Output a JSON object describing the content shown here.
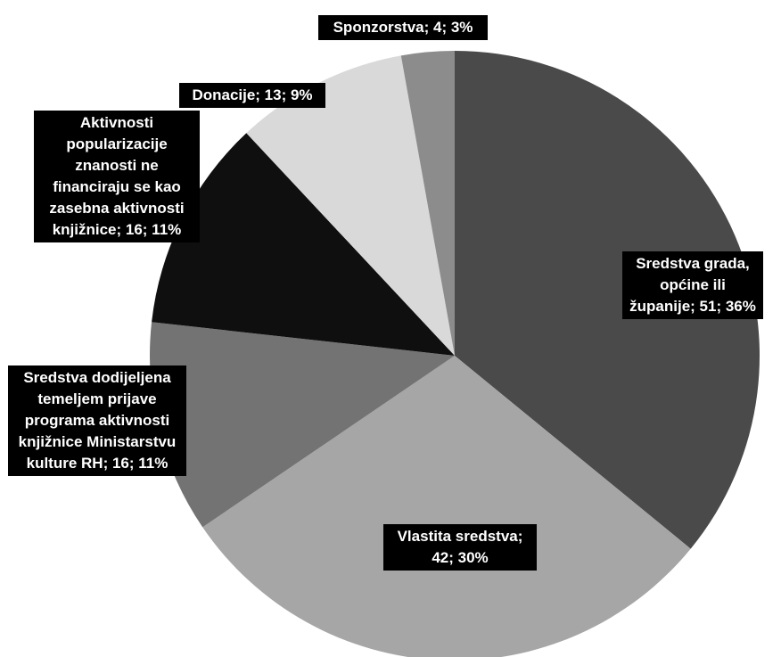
{
  "chart_data": {
    "type": "pie",
    "title": "",
    "slices": [
      {
        "label": "Sredstva grada, općine ili županije; 51; 36%",
        "value": 51,
        "percent": 36,
        "color": "#4a4a4a"
      },
      {
        "label": "Vlastita sredstva; 42; 30%",
        "value": 42,
        "percent": 30,
        "color": "#a6a6a6"
      },
      {
        "label": "Sredstva dodijeljena temeljem prijave programa aktivnosti knjižnice Ministarstvu kulture RH; 16; 11%",
        "value": 16,
        "percent": 11,
        "color": "#737373"
      },
      {
        "label": "Aktivnosti popularizacije znanosti ne financiraju se kao zasebna aktivnosti knjižnice; 16; 11%",
        "value": 16,
        "percent": 11,
        "color": "#0f0f0f"
      },
      {
        "label": "Donacije; 13; 9%",
        "value": 13,
        "percent": 9,
        "color": "#d9d9d9"
      },
      {
        "label": "Sponzorstva; 4; 3%",
        "value": 4,
        "percent": 3,
        "color": "#8c8c8c"
      }
    ],
    "legend": "none"
  }
}
